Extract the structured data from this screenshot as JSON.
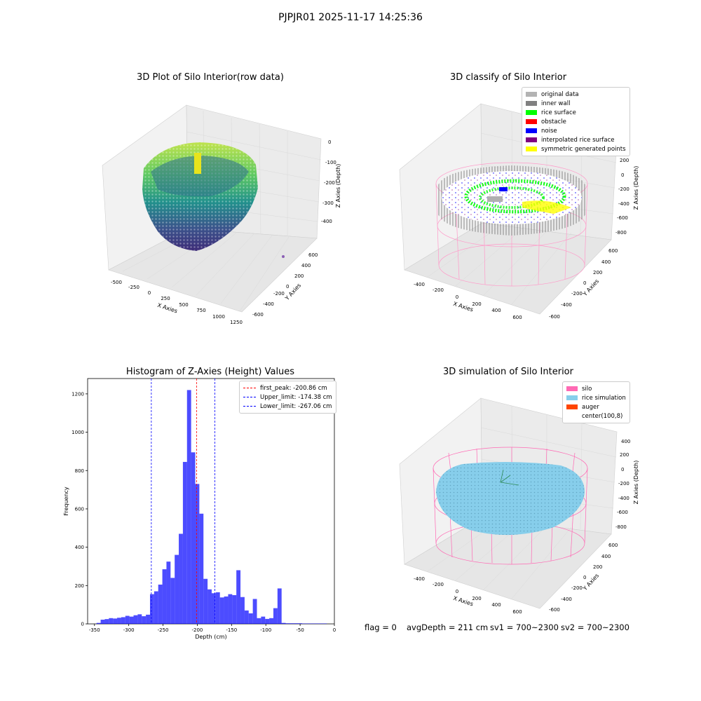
{
  "suptitle": "PJPJR01 2025-11-17 14:25:36",
  "panels": {
    "raw": {
      "title": "3D Plot of Silo Interior(row data)",
      "xlabel": "X Axies",
      "ylabel": "Y Axies",
      "zlabel": "Z Axies (Depth)",
      "xticks": [
        "-500",
        "-250",
        "0",
        "250",
        "500",
        "750",
        "1000",
        "1250"
      ],
      "yticks": [
        "600",
        "400",
        "200",
        "0",
        "-200",
        "-400",
        "-600"
      ],
      "zticks": [
        "0",
        "-100",
        "-200",
        "-300",
        "-400"
      ]
    },
    "classify": {
      "title": "3D classify of Silo Interior",
      "xlabel": "X Axies",
      "ylabel": "Y Axies",
      "zlabel": "Z Axies (Depth)",
      "xticks": [
        "-400",
        "-200",
        "0",
        "200",
        "400",
        "600"
      ],
      "yticks": [
        "600",
        "400",
        "200",
        "0",
        "-200",
        "-400",
        "-600"
      ],
      "zticks": [
        "400",
        "200",
        "0",
        "-200",
        "-400",
        "-600",
        "-800"
      ],
      "legend": [
        {
          "label": "original data",
          "color": "#b3b3b3"
        },
        {
          "label": "inner wall",
          "color": "#808080"
        },
        {
          "label": "rice surface",
          "color": "#00ff00"
        },
        {
          "label": "obstacle",
          "color": "#ff0000"
        },
        {
          "label": "noise",
          "color": "#0000ff"
        },
        {
          "label": "interpolated rice surface",
          "color": "#800080"
        },
        {
          "label": "symmetric generated points",
          "color": "#ffff00"
        }
      ]
    },
    "simulation": {
      "title": "3D simulation of Silo Interior",
      "xlabel": "X Axies",
      "ylabel": "Y Axies",
      "zlabel": "Z Axies (Depth)",
      "xticks": [
        "-400",
        "-200",
        "0",
        "200",
        "400",
        "600"
      ],
      "yticks": [
        "600",
        "400",
        "200",
        "0",
        "-200",
        "-400",
        "-600"
      ],
      "zticks": [
        "400",
        "200",
        "0",
        "-200",
        "-400",
        "-600",
        "-800"
      ],
      "legend": [
        {
          "label": "silo",
          "color": "#ff69b4"
        },
        {
          "label": "rice simulation",
          "color": "#87ceeb"
        },
        {
          "label": "auger",
          "color": "#ff4500"
        },
        {
          "label": "center(100,8)",
          "color": "#ffffff"
        }
      ]
    }
  },
  "status": {
    "flag": "flag = 0",
    "avg": "avgDepth = 211 cm",
    "sv1": "sv1 = 700~2300",
    "sv2": "sv2 = 700~2300"
  },
  "chart_data": {
    "type": "bar",
    "title": "Histogram of Z-Axies (Height) Values",
    "xlabel": "Depth (cm)",
    "ylabel": "Frequency",
    "xlim": [
      -360,
      0
    ],
    "ylim": [
      0,
      1280
    ],
    "xticks": [
      -350,
      -300,
      -250,
      -200,
      -150,
      -100,
      -50,
      0
    ],
    "yticks": [
      0,
      200,
      400,
      600,
      800,
      1000,
      1200
    ],
    "bin_edges": [
      -347,
      -341,
      -335,
      -329,
      -323,
      -317,
      -311,
      -305,
      -299,
      -293,
      -287,
      -281,
      -275,
      -269,
      -263,
      -257,
      -251,
      -245,
      -239,
      -233,
      -227,
      -221,
      -215,
      -209,
      -203,
      -197,
      -191,
      -185,
      -179,
      -173,
      -167,
      -161,
      -155,
      -149,
      -143,
      -137,
      -131,
      -125,
      -119,
      -113,
      -107,
      -101,
      -95,
      -89,
      -83,
      -77,
      -71,
      -65,
      -59,
      -53,
      -47,
      -41,
      -35,
      -29,
      -23,
      -17
    ],
    "values": [
      5,
      22,
      25,
      30,
      28,
      32,
      35,
      42,
      38,
      45,
      50,
      40,
      48,
      155,
      170,
      205,
      285,
      325,
      240,
      360,
      470,
      845,
      1220,
      895,
      730,
      575,
      235,
      180,
      160,
      165,
      138,
      143,
      155,
      150,
      280,
      140,
      70,
      55,
      130,
      30,
      38,
      26,
      30,
      82,
      185,
      5,
      3,
      3,
      3,
      3,
      2,
      2,
      2,
      2,
      2,
      2
    ],
    "color": "#0000ff",
    "lines": [
      {
        "label": "first_peak: -200.86 cm",
        "x": -200.86,
        "color": "#ff0000"
      },
      {
        "label": "Upper_limit: -174.38 cm",
        "x": -174.38,
        "color": "#0000ff"
      },
      {
        "label": "Lower_limit: -267.06 cm",
        "x": -267.06,
        "color": "#0000ff"
      }
    ]
  }
}
